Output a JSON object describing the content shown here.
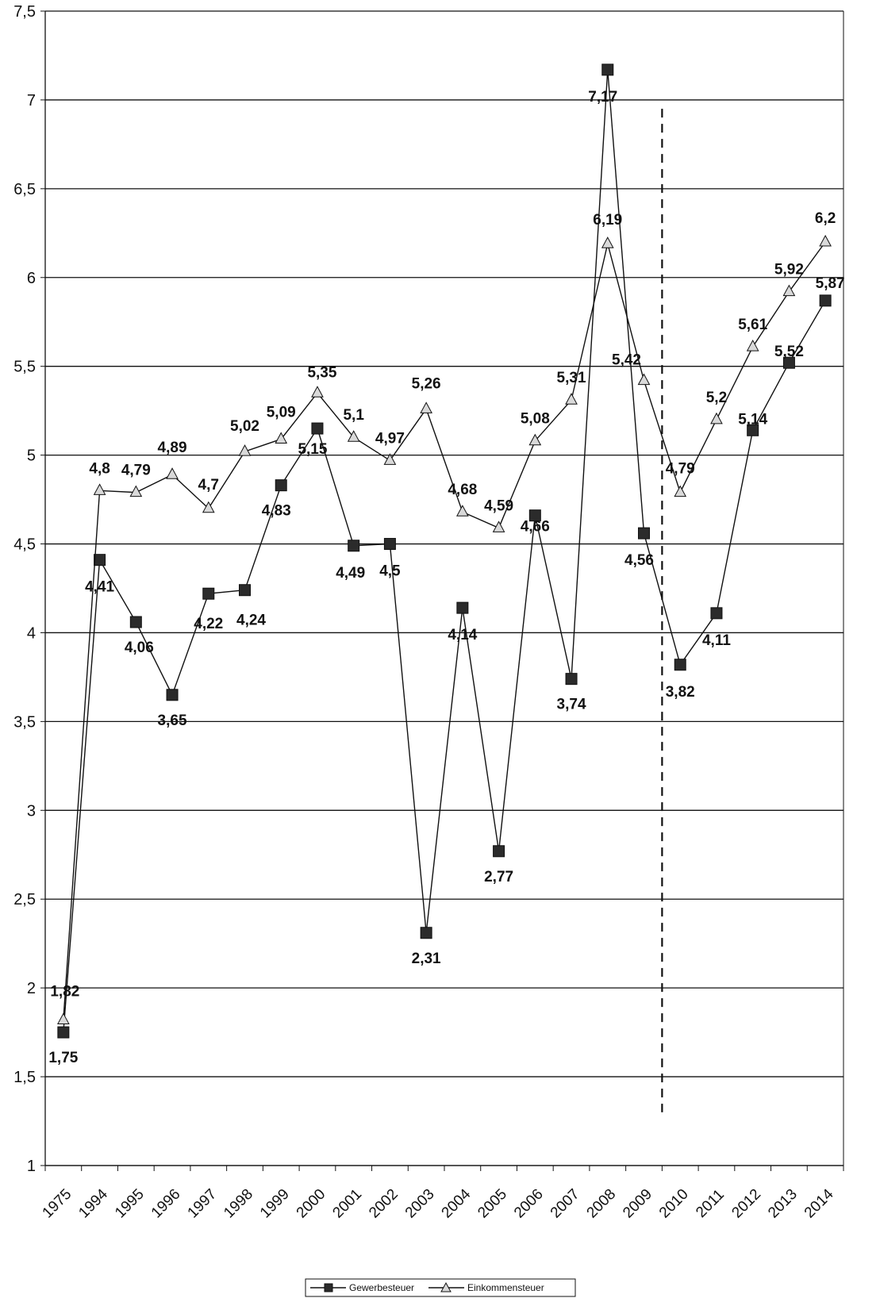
{
  "chart_data": {
    "type": "line",
    "title": "",
    "xlabel": "",
    "ylabel": "",
    "categories": [
      "1975",
      "1994",
      "1995",
      "1996",
      "1997",
      "1998",
      "1999",
      "2000",
      "2001",
      "2002",
      "2003",
      "2004",
      "2005",
      "2006",
      "2007",
      "2008",
      "2009",
      "2010",
      "2011",
      "2012",
      "2013",
      "2014"
    ],
    "ylim": [
      1,
      7.5
    ],
    "yticks": [
      "1",
      "1,5",
      "2",
      "2,5",
      "3",
      "3,5",
      "4",
      "4,5",
      "5",
      "5,5",
      "6",
      "6,5",
      "7",
      "7,5"
    ],
    "grid": "horizontal",
    "dashed_marker": {
      "between": [
        "2009",
        "2010"
      ],
      "ymin": 1.3,
      "ymax": 6.95
    },
    "legend_position": "bottom-center",
    "series": [
      {
        "name": "Gewerbesteuer",
        "marker": "square",
        "values": [
          1.75,
          4.41,
          4.06,
          3.65,
          4.22,
          4.24,
          4.83,
          5.15,
          4.49,
          4.5,
          2.31,
          4.14,
          2.77,
          4.66,
          3.74,
          7.17,
          4.56,
          3.82,
          4.11,
          5.14,
          5.52,
          5.87
        ],
        "labels": [
          "1,75",
          "4,41",
          "4,06",
          "3,65",
          "4,22",
          "4,24",
          "4,83",
          "5,15",
          "4,49",
          "4,5",
          "2,31",
          "4,14",
          "2,77",
          "4,66",
          "3,74",
          "7,17",
          "4,56",
          "3,82",
          "4,11",
          "5,14",
          "5,52",
          "5,87"
        ]
      },
      {
        "name": "Einkommensteuer",
        "marker": "triangle",
        "values": [
          1.82,
          4.8,
          4.79,
          4.89,
          4.7,
          5.02,
          5.09,
          5.35,
          5.1,
          4.97,
          5.26,
          4.68,
          4.59,
          5.08,
          5.31,
          6.19,
          5.42,
          4.79,
          5.2,
          5.61,
          5.92,
          6.2
        ],
        "labels": [
          "1,82",
          "4,8",
          "4,79",
          "4,89",
          "4,7",
          "5,02",
          "5,09",
          "5,35",
          "5,1",
          "4,97",
          "5,26",
          "4,68",
          "4,59",
          "5,08",
          "5,31",
          "6,19",
          "5,42",
          "4,79",
          "5,2",
          "5,61",
          "5,92",
          "6,2"
        ]
      }
    ],
    "colors": {
      "line": "#111111",
      "grid": "#111111",
      "square_fill": "#2b2b2b",
      "triangle_fill": "#d9d9d9"
    }
  }
}
